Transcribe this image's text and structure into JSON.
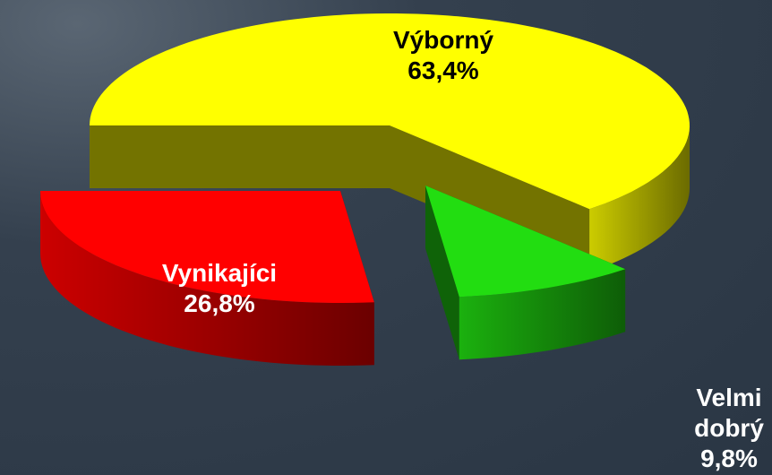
{
  "chart_data": {
    "type": "pie3d",
    "categories": [
      "Výborný",
      "Velmi dobrý",
      "Vynikajíci"
    ],
    "values": [
      63.4,
      9.8,
      26.8
    ],
    "value_labels": [
      "63,4%",
      "9,8%",
      "26,8%"
    ],
    "colors": [
      "#ffff00",
      "#22dd11",
      "#ff0000"
    ]
  }
}
